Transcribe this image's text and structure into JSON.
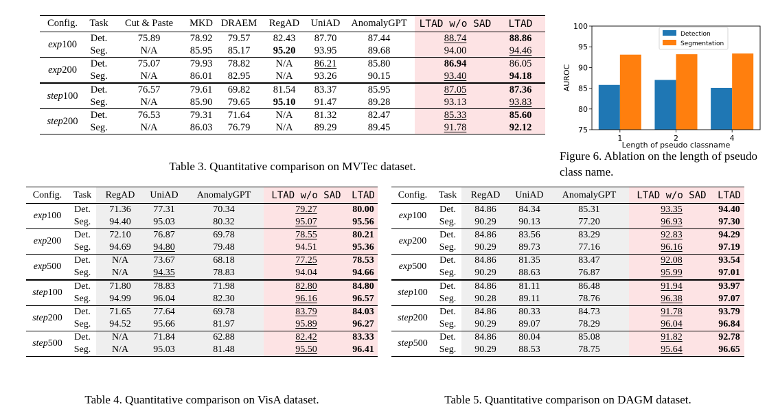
{
  "table3": {
    "caption": "Table 3. Quantitative comparison on MVTec dataset.",
    "header": [
      "Config.",
      "Task",
      "Cut & Paste",
      "MKD",
      "DRAEM",
      "RegAD",
      "UniAD",
      "AnomalyGPT",
      "LTAD w/o SAD",
      "LTAD"
    ],
    "groups": [
      {
        "config": [
          "exp",
          "100"
        ],
        "rows": [
          {
            "task": "Det.",
            "cells": [
              "75.89",
              "78.92",
              "79.57",
              "82.43",
              "87.70",
              "87.44",
              "88.74",
              "88.86"
            ],
            "bold": [
              7
            ],
            "under": [
              6
            ]
          },
          {
            "task": "Seg.",
            "cells": [
              "N/A",
              "85.95",
              "85.17",
              "95.20",
              "93.95",
              "89.68",
              "94.00",
              "94.46"
            ],
            "bold": [
              3
            ],
            "under": [
              7
            ]
          }
        ]
      },
      {
        "config": [
          "exp",
          "200"
        ],
        "rows": [
          {
            "task": "Det.",
            "cells": [
              "75.07",
              "79.93",
              "78.82",
              "N/A",
              "86.21",
              "85.80",
              "86.94",
              "86.05"
            ],
            "bold": [
              6
            ],
            "under": [
              4
            ]
          },
          {
            "task": "Seg.",
            "cells": [
              "N/A",
              "86.01",
              "82.95",
              "N/A",
              "93.26",
              "90.15",
              "93.40",
              "94.18"
            ],
            "bold": [
              7
            ],
            "under": [
              6
            ]
          }
        ]
      },
      {
        "config": [
          "step",
          "100"
        ],
        "rows": [
          {
            "task": "Det.",
            "cells": [
              "76.57",
              "79.61",
              "69.82",
              "81.54",
              "83.37",
              "85.95",
              "87.05",
              "87.36"
            ],
            "bold": [
              7
            ],
            "under": [
              6
            ]
          },
          {
            "task": "Seg.",
            "cells": [
              "N/A",
              "85.90",
              "79.65",
              "95.10",
              "91.47",
              "89.28",
              "93.13",
              "93.83"
            ],
            "bold": [
              3
            ],
            "under": [
              7
            ]
          }
        ]
      },
      {
        "config": [
          "step",
          "200"
        ],
        "rows": [
          {
            "task": "Det.",
            "cells": [
              "76.53",
              "79.31",
              "71.64",
              "N/A",
              "81.32",
              "82.47",
              "85.33",
              "85.60"
            ],
            "bold": [
              7
            ],
            "under": [
              6
            ]
          },
          {
            "task": "Seg.",
            "cells": [
              "N/A",
              "86.03",
              "76.79",
              "N/A",
              "89.29",
              "89.45",
              "91.78",
              "92.12"
            ],
            "bold": [
              7
            ],
            "under": [
              6
            ]
          }
        ]
      }
    ]
  },
  "table4": {
    "caption": "Table 4. Quantitative comparison on VisA dataset.",
    "header": [
      "Config.",
      "Task",
      "RegAD",
      "UniAD",
      "AnomalyGPT",
      "LTAD w/o SAD",
      "LTAD"
    ],
    "groups": [
      {
        "config": [
          "exp",
          "100"
        ],
        "rows": [
          {
            "task": "Det.",
            "cells": [
              "71.36",
              "77.31",
              "70.34",
              "79.27",
              "80.00"
            ],
            "bold": [
              4
            ],
            "under": [
              3
            ]
          },
          {
            "task": "Seg.",
            "cells": [
              "94.40",
              "95.03",
              "80.32",
              "95.07",
              "95.56"
            ],
            "bold": [
              4
            ],
            "under": [
              3
            ]
          }
        ]
      },
      {
        "config": [
          "exp",
          "200"
        ],
        "rows": [
          {
            "task": "Det.",
            "cells": [
              "72.10",
              "76.87",
              "69.78",
              "78.55",
              "80.21"
            ],
            "bold": [
              4
            ],
            "under": [
              3
            ]
          },
          {
            "task": "Seg.",
            "cells": [
              "94.69",
              "94.80",
              "79.48",
              "94.51",
              "95.36"
            ],
            "bold": [
              4
            ],
            "under": [
              1
            ]
          }
        ]
      },
      {
        "config": [
          "exp",
          "500"
        ],
        "rows": [
          {
            "task": "Det.",
            "cells": [
              "N/A",
              "73.67",
              "68.18",
              "77.25",
              "78.53"
            ],
            "bold": [
              4
            ],
            "under": [
              3
            ]
          },
          {
            "task": "Seg.",
            "cells": [
              "N/A",
              "94.35",
              "78.83",
              "94.04",
              "94.66"
            ],
            "bold": [
              4
            ],
            "under": [
              1
            ]
          }
        ]
      },
      {
        "config": [
          "step",
          "100"
        ],
        "rows": [
          {
            "task": "Det.",
            "cells": [
              "71.80",
              "78.83",
              "71.98",
              "82.80",
              "84.80"
            ],
            "bold": [
              4
            ],
            "under": [
              3
            ]
          },
          {
            "task": "Seg.",
            "cells": [
              "94.99",
              "96.04",
              "82.30",
              "96.16",
              "96.57"
            ],
            "bold": [
              4
            ],
            "under": [
              3
            ]
          }
        ]
      },
      {
        "config": [
          "step",
          "200"
        ],
        "rows": [
          {
            "task": "Det.",
            "cells": [
              "71.65",
              "77.64",
              "69.78",
              "83.79",
              "84.03"
            ],
            "bold": [
              4
            ],
            "under": [
              3
            ]
          },
          {
            "task": "Seg.",
            "cells": [
              "94.52",
              "95.66",
              "81.97",
              "95.89",
              "96.27"
            ],
            "bold": [
              4
            ],
            "under": [
              3
            ]
          }
        ]
      },
      {
        "config": [
          "step",
          "500"
        ],
        "rows": [
          {
            "task": "Det.",
            "cells": [
              "N/A",
              "71.84",
              "62.88",
              "82.42",
              "83.33"
            ],
            "bold": [
              4
            ],
            "under": [
              3
            ]
          },
          {
            "task": "Seg.",
            "cells": [
              "N/A",
              "95.03",
              "81.48",
              "95.50",
              "96.41"
            ],
            "bold": [
              4
            ],
            "under": [
              3
            ]
          }
        ]
      }
    ]
  },
  "table5": {
    "caption": "Table 5. Quantitative comparison on DAGM dataset.",
    "header": [
      "Config.",
      "Task",
      "RegAD",
      "UniAD",
      "AnomalyGPT",
      "LTAD w/o SAD",
      "LTAD"
    ],
    "groups": [
      {
        "config": [
          "exp",
          "100"
        ],
        "rows": [
          {
            "task": "Det.",
            "cells": [
              "84.86",
              "84.34",
              "85.31",
              "93.35",
              "94.40"
            ],
            "bold": [
              4
            ],
            "under": [
              3
            ]
          },
          {
            "task": "Seg.",
            "cells": [
              "90.29",
              "90.13",
              "77.20",
              "96.93",
              "97.30"
            ],
            "bold": [
              4
            ],
            "under": [
              3
            ]
          }
        ]
      },
      {
        "config": [
          "exp",
          "200"
        ],
        "rows": [
          {
            "task": "Det.",
            "cells": [
              "84.86",
              "83.56",
              "83.29",
              "92.83",
              "94.29"
            ],
            "bold": [
              4
            ],
            "under": [
              3
            ]
          },
          {
            "task": "Seg.",
            "cells": [
              "90.29",
              "89.73",
              "77.16",
              "96.16",
              "97.19"
            ],
            "bold": [
              4
            ],
            "under": [
              3
            ]
          }
        ]
      },
      {
        "config": [
          "exp",
          "500"
        ],
        "rows": [
          {
            "task": "Det.",
            "cells": [
              "84.86",
              "81.35",
              "83.47",
              "92.08",
              "93.54"
            ],
            "bold": [
              4
            ],
            "under": [
              3
            ]
          },
          {
            "task": "Seg.",
            "cells": [
              "90.29",
              "88.63",
              "76.87",
              "95.99",
              "97.01"
            ],
            "bold": [
              4
            ],
            "under": [
              3
            ]
          }
        ]
      },
      {
        "config": [
          "step",
          "100"
        ],
        "rows": [
          {
            "task": "Det.",
            "cells": [
              "84.86",
              "81.11",
              "86.48",
              "91.94",
              "93.97"
            ],
            "bold": [
              4
            ],
            "under": [
              3
            ]
          },
          {
            "task": "Seg.",
            "cells": [
              "90.28",
              "89.11",
              "78.76",
              "96.38",
              "97.07"
            ],
            "bold": [
              4
            ],
            "under": [
              3
            ]
          }
        ]
      },
      {
        "config": [
          "step",
          "200"
        ],
        "rows": [
          {
            "task": "Det.",
            "cells": [
              "84.86",
              "80.33",
              "84.73",
              "91.78",
              "93.79"
            ],
            "bold": [
              4
            ],
            "under": [
              3
            ]
          },
          {
            "task": "Seg.",
            "cells": [
              "90.29",
              "89.07",
              "78.29",
              "96.04",
              "96.84"
            ],
            "bold": [
              4
            ],
            "under": [
              3
            ]
          }
        ]
      },
      {
        "config": [
          "step",
          "500"
        ],
        "rows": [
          {
            "task": "Det.",
            "cells": [
              "84.86",
              "80.04",
              "85.08",
              "91.82",
              "92.78"
            ],
            "bold": [
              4
            ],
            "under": [
              3
            ]
          },
          {
            "task": "Seg.",
            "cells": [
              "90.29",
              "88.53",
              "78.75",
              "95.64",
              "96.65"
            ],
            "bold": [
              4
            ],
            "under": [
              3
            ]
          }
        ]
      }
    ]
  },
  "figure6": {
    "caption": "Figure 6. Ablation on the length of pseudo class name.",
    "chart_data": {
      "type": "bar",
      "categories": [
        "1",
        "2",
        "4"
      ],
      "series": [
        {
          "name": "Detection",
          "values": [
            85.8,
            87.0,
            85.1
          ],
          "color": "#1f77b4"
        },
        {
          "name": "Segmentation",
          "values": [
            93.1,
            93.2,
            93.4
          ],
          "color": "#ff7f0e"
        }
      ],
      "xlabel": "Length of pseudo classname",
      "ylabel": "AUROC",
      "ylim": [
        75,
        100
      ],
      "yticks": [
        "75",
        "80",
        "85",
        "90",
        "95",
        "100"
      ],
      "legend": "top-left",
      "grid": false
    }
  }
}
